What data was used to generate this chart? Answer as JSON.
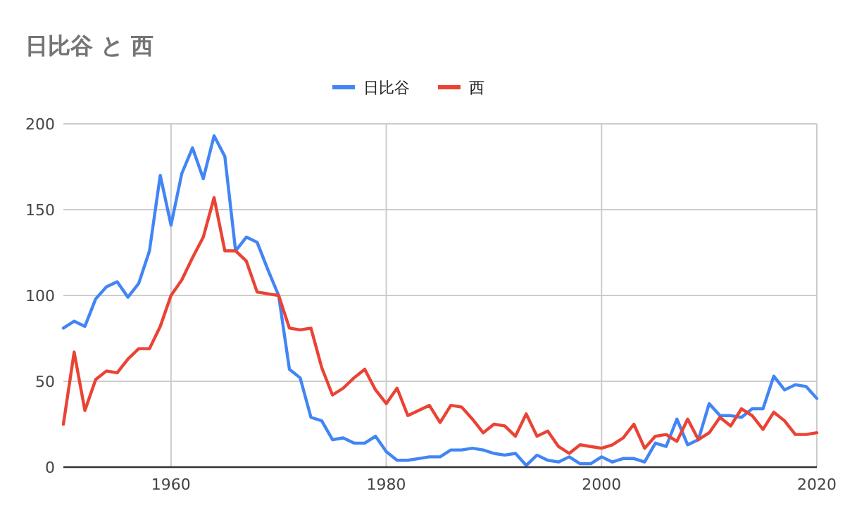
{
  "chart_data": {
    "type": "line",
    "title": "日比谷 と 西",
    "x": [
      1950,
      1951,
      1952,
      1953,
      1954,
      1955,
      1956,
      1957,
      1958,
      1959,
      1960,
      1961,
      1962,
      1963,
      1964,
      1965,
      1966,
      1967,
      1968,
      1969,
      1970,
      1971,
      1972,
      1973,
      1974,
      1975,
      1976,
      1977,
      1978,
      1979,
      1980,
      1981,
      1982,
      1983,
      1984,
      1985,
      1986,
      1987,
      1988,
      1989,
      1990,
      1991,
      1992,
      1993,
      1994,
      1995,
      1996,
      1997,
      1998,
      1999,
      2000,
      2001,
      2002,
      2003,
      2004,
      2005,
      2006,
      2007,
      2008,
      2009,
      2010,
      2011,
      2012,
      2013,
      2014,
      2015,
      2016,
      2017,
      2018,
      2019,
      2020
    ],
    "series": [
      {
        "name": "日比谷",
        "color": "#4285f4",
        "values": [
          81,
          85,
          82,
          98,
          105,
          108,
          99,
          107,
          126,
          170,
          141,
          171,
          186,
          168,
          193,
          181,
          126,
          134,
          131,
          115,
          100,
          57,
          52,
          29,
          27,
          16,
          17,
          14,
          14,
          18,
          9,
          4,
          4,
          5,
          6,
          6,
          10,
          10,
          11,
          10,
          8,
          7,
          8,
          1,
          7,
          4,
          3,
          6,
          2,
          2,
          6,
          3,
          5,
          5,
          3,
          14,
          12,
          28,
          13,
          16,
          37,
          30,
          30,
          29,
          34,
          34,
          53,
          45,
          48,
          47,
          40
        ]
      },
      {
        "name": "西",
        "color": "#ea4335",
        "values": [
          25,
          67,
          33,
          51,
          56,
          55,
          63,
          69,
          69,
          82,
          100,
          109,
          122,
          134,
          157,
          126,
          126,
          120,
          102,
          101,
          100,
          81,
          80,
          81,
          58,
          42,
          46,
          52,
          57,
          45,
          37,
          46,
          30,
          33,
          36,
          26,
          36,
          35,
          28,
          20,
          25,
          24,
          18,
          31,
          18,
          21,
          12,
          8,
          13,
          12,
          11,
          13,
          17,
          25,
          11,
          18,
          19,
          15,
          28,
          16,
          20,
          29,
          24,
          34,
          30,
          22,
          32,
          27,
          19,
          19,
          20
        ]
      }
    ],
    "xlim": [
      1950,
      2020
    ],
    "xticks": [
      1960,
      1980,
      2000,
      2020
    ],
    "ylim": [
      0,
      200
    ],
    "yticks": [
      0,
      50,
      100,
      150,
      200
    ],
    "grid": true,
    "legend": "top",
    "marker": "none",
    "line_style": "solid"
  }
}
